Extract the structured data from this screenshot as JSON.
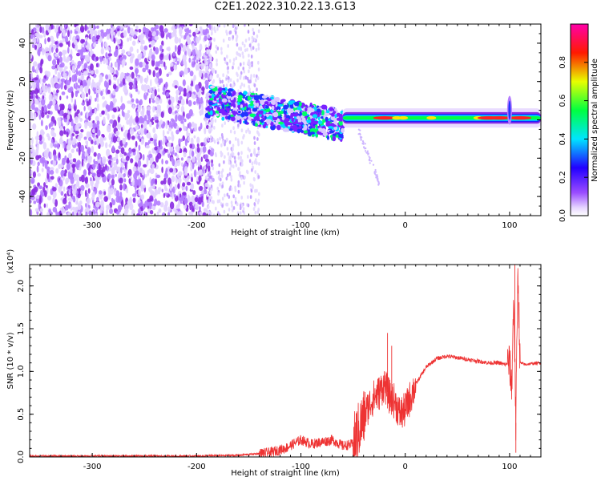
{
  "title": "C2E1.2022.310.22.13.G13",
  "colors": {
    "snr_line": "#ee3333",
    "spectrum_low": "#8a2be2",
    "spectrum_faint": "#d9c8ff"
  },
  "chart_data": [
    {
      "type": "heatmap",
      "xlabel": "Height of straight line (km)",
      "ylabel": "Frequency (Hz)",
      "xlim": [
        -360,
        130
      ],
      "ylim": [
        -50,
        50
      ],
      "xticks": [
        -300,
        -200,
        -100,
        0,
        100
      ],
      "yticks": [
        -40,
        -20,
        0,
        20,
        40
      ],
      "colorbar": {
        "label": "Normalized spectral amplitude",
        "range": [
          0,
          1
        ],
        "ticks": [
          "0.0",
          "0.2",
          "0.4",
          "0.6",
          "0.8"
        ],
        "colormap": "rainbow (white→violet→blue→cyan→green→yellow→red→magenta)"
      },
      "features": [
        {
          "segment": "noise field",
          "x_range": [
            -360,
            -190
          ],
          "freq_range": [
            -50,
            50
          ],
          "amplitude": 0.05
        },
        {
          "segment": "signal emerging",
          "x_range": [
            -190,
            -60
          ],
          "freq_center_start": 10,
          "freq_center_end": -3,
          "amplitude": 0.35
        },
        {
          "segment": "stable tone",
          "x_range": [
            -60,
            130
          ],
          "freq_center": 1,
          "amplitude": 0.9
        },
        {
          "segment": "spike",
          "x": 100,
          "freq_range": [
            -8,
            16
          ],
          "amplitude": 0.5
        }
      ]
    },
    {
      "type": "line",
      "xlabel": "Height of straight line (km)",
      "ylabel": "SNR (10 * v/v)",
      "scale_note": "(x10⁴)",
      "xlim": [
        -360,
        130
      ],
      "ylim": [
        0,
        2.25
      ],
      "xticks": [
        -300,
        -200,
        -100,
        0,
        100
      ],
      "yticks": [
        "0.0",
        "0.5",
        "1.0",
        "1.5",
        "2.0"
      ],
      "series": [
        {
          "x": [
            -360,
            -300,
            -250,
            -200,
            -160,
            -130,
            -115,
            -100,
            -90,
            -70,
            -60,
            -50,
            -45,
            -40,
            -35,
            -30,
            -25,
            -20,
            -15,
            -10,
            -5,
            0,
            5,
            10,
            15,
            20,
            25,
            30,
            40,
            50,
            60,
            70,
            80,
            90,
            95,
            100,
            102,
            104,
            106,
            108,
            110,
            115,
            120,
            130
          ],
          "y": [
            0.01,
            0.01,
            0.01,
            0.01,
            0.02,
            0.05,
            0.1,
            0.2,
            0.15,
            0.2,
            0.13,
            0.15,
            0.3,
            0.45,
            0.6,
            0.7,
            0.75,
            0.85,
            0.7,
            0.65,
            0.5,
            0.55,
            0.7,
            0.85,
            0.95,
            1.05,
            1.1,
            1.15,
            1.18,
            1.16,
            1.14,
            1.12,
            1.1,
            1.1,
            1.08,
            1.1,
            0.8,
            1.9,
            0.4,
            2.2,
            1.1,
            1.08,
            1.09,
            1.1
          ]
        }
      ]
    }
  ]
}
